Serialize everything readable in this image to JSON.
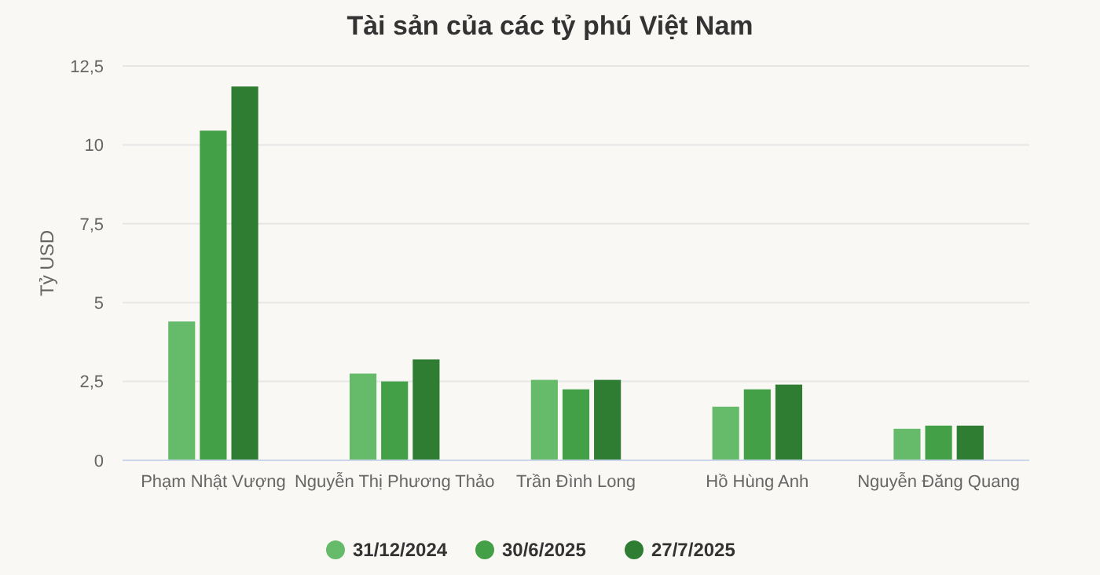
{
  "chart_data": {
    "type": "bar",
    "title": "Tài sản của các tỷ phú Việt Nam",
    "ylabel": "Tỷ USD",
    "categories": [
      "Phạm Nhật Vượng",
      "Nguyễn Thị Phương Thảo",
      "Trần Đình Long",
      "Hồ Hùng Anh",
      "Nguyễn Đăng Quang"
    ],
    "series": [
      {
        "name": "31/12/2024",
        "color": "#66bb6a",
        "values": [
          4.4,
          2.75,
          2.55,
          1.7,
          1.0
        ]
      },
      {
        "name": "30/6/2025",
        "color": "#43a047",
        "values": [
          10.45,
          2.5,
          2.25,
          2.25,
          1.1
        ]
      },
      {
        "name": "27/7/2025",
        "color": "#2e7d32",
        "values": [
          11.85,
          3.2,
          2.55,
          2.4,
          1.1
        ]
      }
    ],
    "ylim": [
      0,
      12.5
    ],
    "yticks": [
      0,
      {
        "value": 2.5,
        "label": "2,5"
      },
      5,
      {
        "value": 7.5,
        "label": "7,5"
      },
      10,
      {
        "value": 12.5,
        "label": "12,5"
      }
    ],
    "grid": "y",
    "legend": "bottom"
  }
}
